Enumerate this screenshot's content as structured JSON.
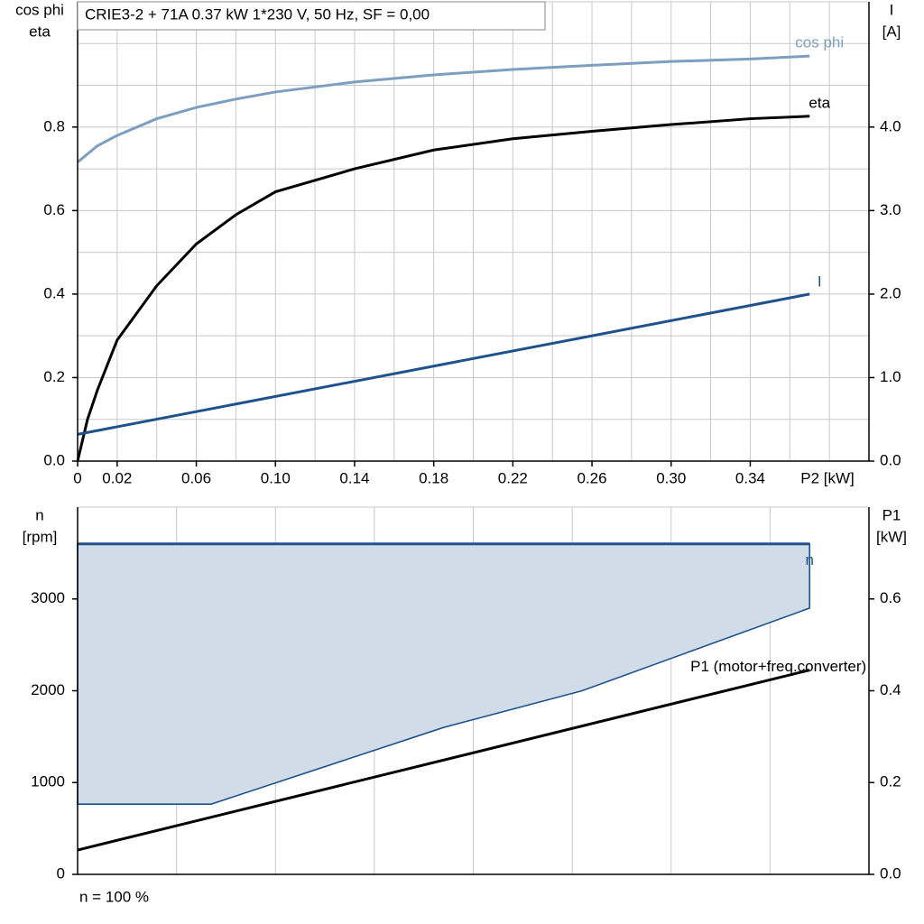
{
  "chart_data": [
    {
      "type": "line",
      "title": "CRIE3-2 + 71A   0.37 kW   1*230 V, 50 Hz, SF = 0,00",
      "ylabel": [
        "cos phi",
        "eta"
      ],
      "y2label": [
        "I",
        "[A]"
      ],
      "xlabel": "P2 [kW]",
      "xlim": [
        0,
        0.4
      ],
      "ylim": [
        0,
        1.1
      ],
      "y2lim": [
        0,
        5.5
      ],
      "xticks": [
        0,
        0.02,
        0.06,
        {
          "value": 0.1,
          "label": "0.10"
        },
        0.14,
        0.18,
        0.22,
        0.26,
        {
          "value": 0.3,
          "label": "0.30"
        },
        0.34
      ],
      "yticks": [
        {
          "value": 0,
          "label": "0.0"
        },
        0.2,
        0.4,
        0.6,
        0.8
      ],
      "y2ticks": [
        {
          "value": 0,
          "label": "0.0"
        },
        {
          "value": 1,
          "label": "1.0"
        },
        {
          "value": 2,
          "label": "2.0"
        },
        {
          "value": 3,
          "label": "3.0"
        },
        {
          "value": 4,
          "label": "4.0"
        }
      ],
      "xgrid": [
        0.02,
        0.04,
        0.06,
        0.08,
        0.1,
        0.12,
        0.14,
        0.16,
        0.18,
        0.2,
        0.22,
        0.24,
        0.26,
        0.28,
        0.3,
        0.32,
        0.34,
        0.36,
        0.38
      ],
      "ygrid": [
        0.1,
        0.2,
        0.3,
        0.4,
        0.5,
        0.6,
        0.7,
        0.8,
        0.9,
        1.0
      ],
      "series": [
        {
          "name": "cos phi",
          "color": "#7c9fc0",
          "x": [
            0,
            0.01,
            0.02,
            0.04,
            0.06,
            0.08,
            0.1,
            0.14,
            0.18,
            0.22,
            0.26,
            0.3,
            0.34,
            0.37
          ],
          "values": [
            0.716,
            0.755,
            0.78,
            0.82,
            0.847,
            0.867,
            0.884,
            0.908,
            0.925,
            0.938,
            0.948,
            0.957,
            0.963,
            0.97
          ]
        },
        {
          "name": "eta",
          "color": "#000000",
          "x": [
            0,
            0.005,
            0.01,
            0.02,
            0.04,
            0.06,
            0.08,
            0.1,
            0.14,
            0.18,
            0.22,
            0.26,
            0.3,
            0.34,
            0.37
          ],
          "values": [
            0,
            0.1,
            0.17,
            0.29,
            0.42,
            0.52,
            0.59,
            0.645,
            0.7,
            0.745,
            0.772,
            0.79,
            0.806,
            0.82,
            0.826
          ]
        },
        {
          "name": "I",
          "color": "#1f528c",
          "axis": "y2",
          "x": [
            0,
            0.37
          ],
          "values": [
            0.32,
            2.0
          ]
        }
      ]
    },
    {
      "type": "line",
      "ylabel": [
        "n",
        "[rpm]"
      ],
      "y2label": [
        "P1",
        "[kW]"
      ],
      "note": "n = 100 %",
      "xlim": [
        0,
        0.4
      ],
      "ylim": [
        0,
        4000
      ],
      "y2lim": [
        0,
        0.8
      ],
      "yticks": [
        0,
        1000,
        2000,
        3000
      ],
      "y2ticks": [
        {
          "value": 0,
          "label": "0.0"
        },
        0.2,
        0.4,
        0.6
      ],
      "xgrid": [
        0.05,
        0.1,
        0.15,
        0.2,
        0.25,
        0.3,
        0.35
      ],
      "series": [
        {
          "name": "n",
          "color": "#1f528c",
          "fill": "#d0dce8",
          "x": [
            0,
            0.37
          ],
          "values": [
            3600,
            3600
          ],
          "fill_low_x": [
            0,
            0.0675,
            0.185,
            0.255,
            0.37
          ],
          "fill_low": [
            765,
            765,
            1600,
            2000,
            2900
          ]
        },
        {
          "name": "P1 (motor+freq.converter)",
          "color": "#000000",
          "axis": "y2",
          "x": [
            0,
            0.37
          ],
          "values": [
            0.053,
            0.445
          ]
        }
      ]
    }
  ]
}
